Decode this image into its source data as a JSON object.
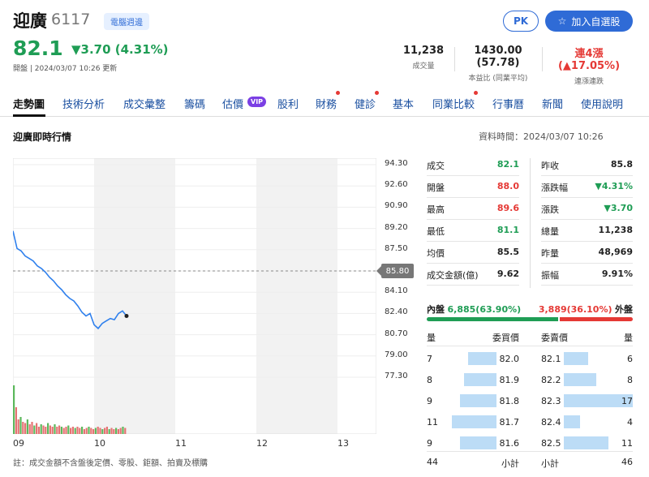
{
  "header": {
    "name": "迎廣",
    "code": "6117",
    "tag": "電腦週邊",
    "price": "82.1",
    "change": "▼3.70 (4.31%)",
    "sub_status": "開盤 | 2024/03/07 10:26 更新",
    "pk_label": "PK",
    "add_label": "加入自選股",
    "volume_value": "11,238",
    "volume_label": "成交量",
    "pe_value": "1430.00 (57.78)",
    "pe_label": "本益比 (同業平均)",
    "streak_value": "連4漲",
    "streak_pct": "(▲17.05%)",
    "streak_label": "連漲連跌"
  },
  "tabs": [
    {
      "label": "走勢圖"
    },
    {
      "label": "技術分析"
    },
    {
      "label": "成交彙整"
    },
    {
      "label": "籌碼"
    },
    {
      "label": "估價"
    },
    {
      "label": "股利"
    },
    {
      "label": "財務"
    },
    {
      "label": "健診"
    },
    {
      "label": "基本"
    },
    {
      "label": "同業比較"
    },
    {
      "label": "行事曆"
    },
    {
      "label": "新聞"
    },
    {
      "label": "使用說明"
    }
  ],
  "vip_badge": "VIP",
  "section": {
    "title": "迎廣即時行情",
    "data_time": "資料時間：2024/03/07 10:26"
  },
  "chart_data": {
    "type": "line",
    "y_ticks": [
      "94.30",
      "92.60",
      "90.90",
      "89.20",
      "87.50",
      "85.80",
      "84.10",
      "82.40",
      "80.70",
      "79.00",
      "77.30"
    ],
    "x_ticks": [
      "09",
      "10",
      "11",
      "12",
      "13"
    ],
    "reference_price": "85.80",
    "ylim": [
      77.3,
      94.3
    ],
    "series": [
      {
        "x": [
          0,
          0.05,
          0.1,
          0.15,
          0.2,
          0.25,
          0.3,
          0.35,
          0.4,
          0.45,
          0.5,
          0.55,
          0.6,
          0.65,
          0.7,
          0.75,
          0.8,
          0.85,
          0.9,
          0.95,
          1.0,
          1.05,
          1.1,
          1.15,
          1.2,
          1.25,
          1.3,
          1.35,
          1.4
        ],
        "values": [
          89.0,
          87.6,
          87.4,
          87.0,
          86.8,
          86.6,
          86.2,
          86.0,
          85.7,
          85.3,
          85.0,
          84.6,
          84.3,
          83.9,
          83.6,
          83.4,
          83.0,
          82.5,
          82.2,
          82.4,
          81.5,
          81.2,
          81.6,
          81.8,
          82.0,
          81.9,
          82.4,
          82.6,
          82.2
        ]
      }
    ],
    "volume_bars": [
      40,
      22,
      12,
      14,
      10,
      9,
      12,
      8,
      10,
      7,
      9,
      6,
      8,
      7,
      6,
      9,
      7,
      6,
      8,
      6,
      7,
      6,
      5,
      6,
      7,
      5,
      6,
      5,
      6,
      5,
      6,
      4,
      5,
      6,
      5,
      4,
      5,
      6,
      5,
      4,
      5,
      6,
      4,
      5,
      4,
      5,
      4,
      5,
      6,
      5
    ]
  },
  "quote": {
    "left": [
      {
        "label": "成交",
        "value": "82.1",
        "color": "#1f9d55"
      },
      {
        "label": "開盤",
        "value": "88.0",
        "color": "#e53935"
      },
      {
        "label": "最高",
        "value": "89.6",
        "color": "#e53935"
      },
      {
        "label": "最低",
        "value": "81.1",
        "color": "#1f9d55"
      },
      {
        "label": "均價",
        "value": "85.5",
        "color": "#222222"
      },
      {
        "label": "成交金額(億)",
        "value": "9.62",
        "color": "#222222"
      }
    ],
    "right": [
      {
        "label": "昨收",
        "value": "85.8",
        "color": "#222222"
      },
      {
        "label": "漲跌幅",
        "value": "▼4.31%",
        "color": "#1f9d55"
      },
      {
        "label": "漲跌",
        "value": "▼3.70",
        "color": "#1f9d55"
      },
      {
        "label": "總量",
        "value": "11,238",
        "color": "#222222"
      },
      {
        "label": "昨量",
        "value": "48,969",
        "color": "#222222"
      },
      {
        "label": "振幅",
        "value": "9.91%",
        "color": "#222222"
      }
    ]
  },
  "ratio": {
    "inner_label": "內盤",
    "inner_value": "6,885(63.90%)",
    "outer_value": "3,889(36.10%)",
    "outer_label": "外盤",
    "inner_fraction": 0.639
  },
  "orderbook": {
    "head_qty": "量",
    "head_bid": "委買價",
    "head_ask": "委賣價",
    "head_qty2": "量",
    "rows": [
      {
        "bid_qty": "7",
        "bid": "82.0",
        "ask": "82.1",
        "ask_qty": "6",
        "bid_frac": 0.41,
        "ask_frac": 0.35
      },
      {
        "bid_qty": "8",
        "bid": "81.9",
        "ask": "82.2",
        "ask_qty": "8",
        "bid_frac": 0.47,
        "ask_frac": 0.47
      },
      {
        "bid_qty": "9",
        "bid": "81.8",
        "ask": "82.3",
        "ask_qty": "17",
        "bid_frac": 0.53,
        "ask_frac": 1.0
      },
      {
        "bid_qty": "11",
        "bid": "81.7",
        "ask": "82.4",
        "ask_qty": "4",
        "bid_frac": 0.65,
        "ask_frac": 0.24
      },
      {
        "bid_qty": "9",
        "bid": "81.6",
        "ask": "82.5",
        "ask_qty": "11",
        "bid_frac": 0.53,
        "ask_frac": 0.65
      }
    ],
    "total_bid": "44",
    "total_bid_label": "小計",
    "total_ask_label": "小計",
    "total_ask": "46"
  },
  "footer_note": "註：成交金額不含盤後定價、零股、鉅額、拍賣及標購"
}
